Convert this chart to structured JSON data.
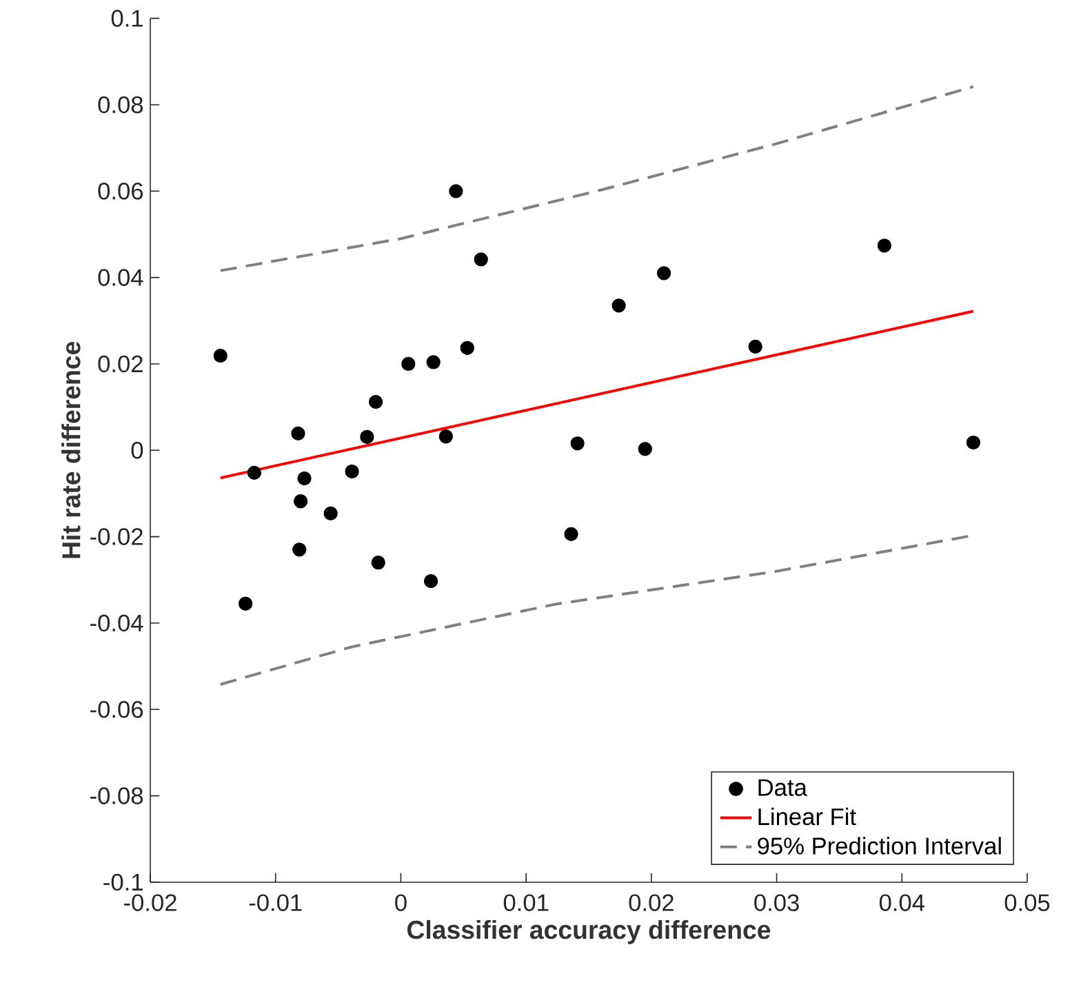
{
  "chart_data": {
    "type": "scatter",
    "xlabel": "Classifier accuracy difference",
    "ylabel": "Hit rate difference",
    "xlim": [
      -0.02,
      0.05
    ],
    "ylim": [
      -0.1,
      0.1
    ],
    "xticks": [
      -0.02,
      -0.01,
      0,
      0.01,
      0.02,
      0.03,
      0.04,
      0.05
    ],
    "yticks": [
      -0.1,
      -0.08,
      -0.06,
      -0.04,
      -0.02,
      0,
      0.02,
      0.04,
      0.06,
      0.08,
      0.1
    ],
    "grid": false,
    "legend": "bottom right",
    "series": [
      {
        "name": "Data",
        "marker": "circle",
        "color": "#000000",
        "x": [
          0.0044,
          0.0064,
          -0.0144,
          0.0006,
          0.0026,
          0.0053,
          -0.002,
          -0.0082,
          -0.0027,
          0.0036,
          0.0141,
          -0.0117,
          -0.0077,
          -0.0039,
          -0.008,
          -0.0056,
          -0.0081,
          -0.0018,
          0.0024,
          -0.0124,
          0.0136,
          0.0174,
          0.021,
          0.0386,
          0.0283,
          0.0195,
          0.0457
        ],
        "values": [
          0.06,
          0.0442,
          0.0219,
          0.02,
          0.0204,
          0.0237,
          0.0112,
          0.0039,
          0.0031,
          0.0032,
          0.0016,
          -0.0052,
          -0.0065,
          -0.0049,
          -0.0118,
          -0.0146,
          -0.023,
          -0.026,
          -0.0303,
          -0.0355,
          -0.0194,
          0.0335,
          0.041,
          0.0474,
          0.024,
          0.0003,
          0.0018
        ]
      },
      {
        "name": "Linear Fit",
        "type": "line",
        "marker": "none",
        "line_style": "solid",
        "color": "#ff0000",
        "x": [
          -0.0144,
          0.0457
        ],
        "values": [
          -0.0064,
          0.0322
        ]
      },
      {
        "name": "95% Prediction Interval",
        "type": "line",
        "marker": "none",
        "line_style": "dashed",
        "color": "#808080",
        "x": [
          -0.0144,
          0,
          0.0159,
          0.03,
          0.0457
        ],
        "values": [
          0.0416,
          0.049,
          0.0602,
          0.071,
          0.0842
        ]
      },
      {
        "type": "line",
        "marker": "none",
        "line_style": "dashed",
        "color": "#808080",
        "x": [
          -0.0144,
          -0.0039,
          0.0124,
          0.03,
          0.0457
        ],
        "values": [
          -0.0542,
          -0.0455,
          -0.0356,
          -0.028,
          -0.0197
        ]
      }
    ]
  }
}
